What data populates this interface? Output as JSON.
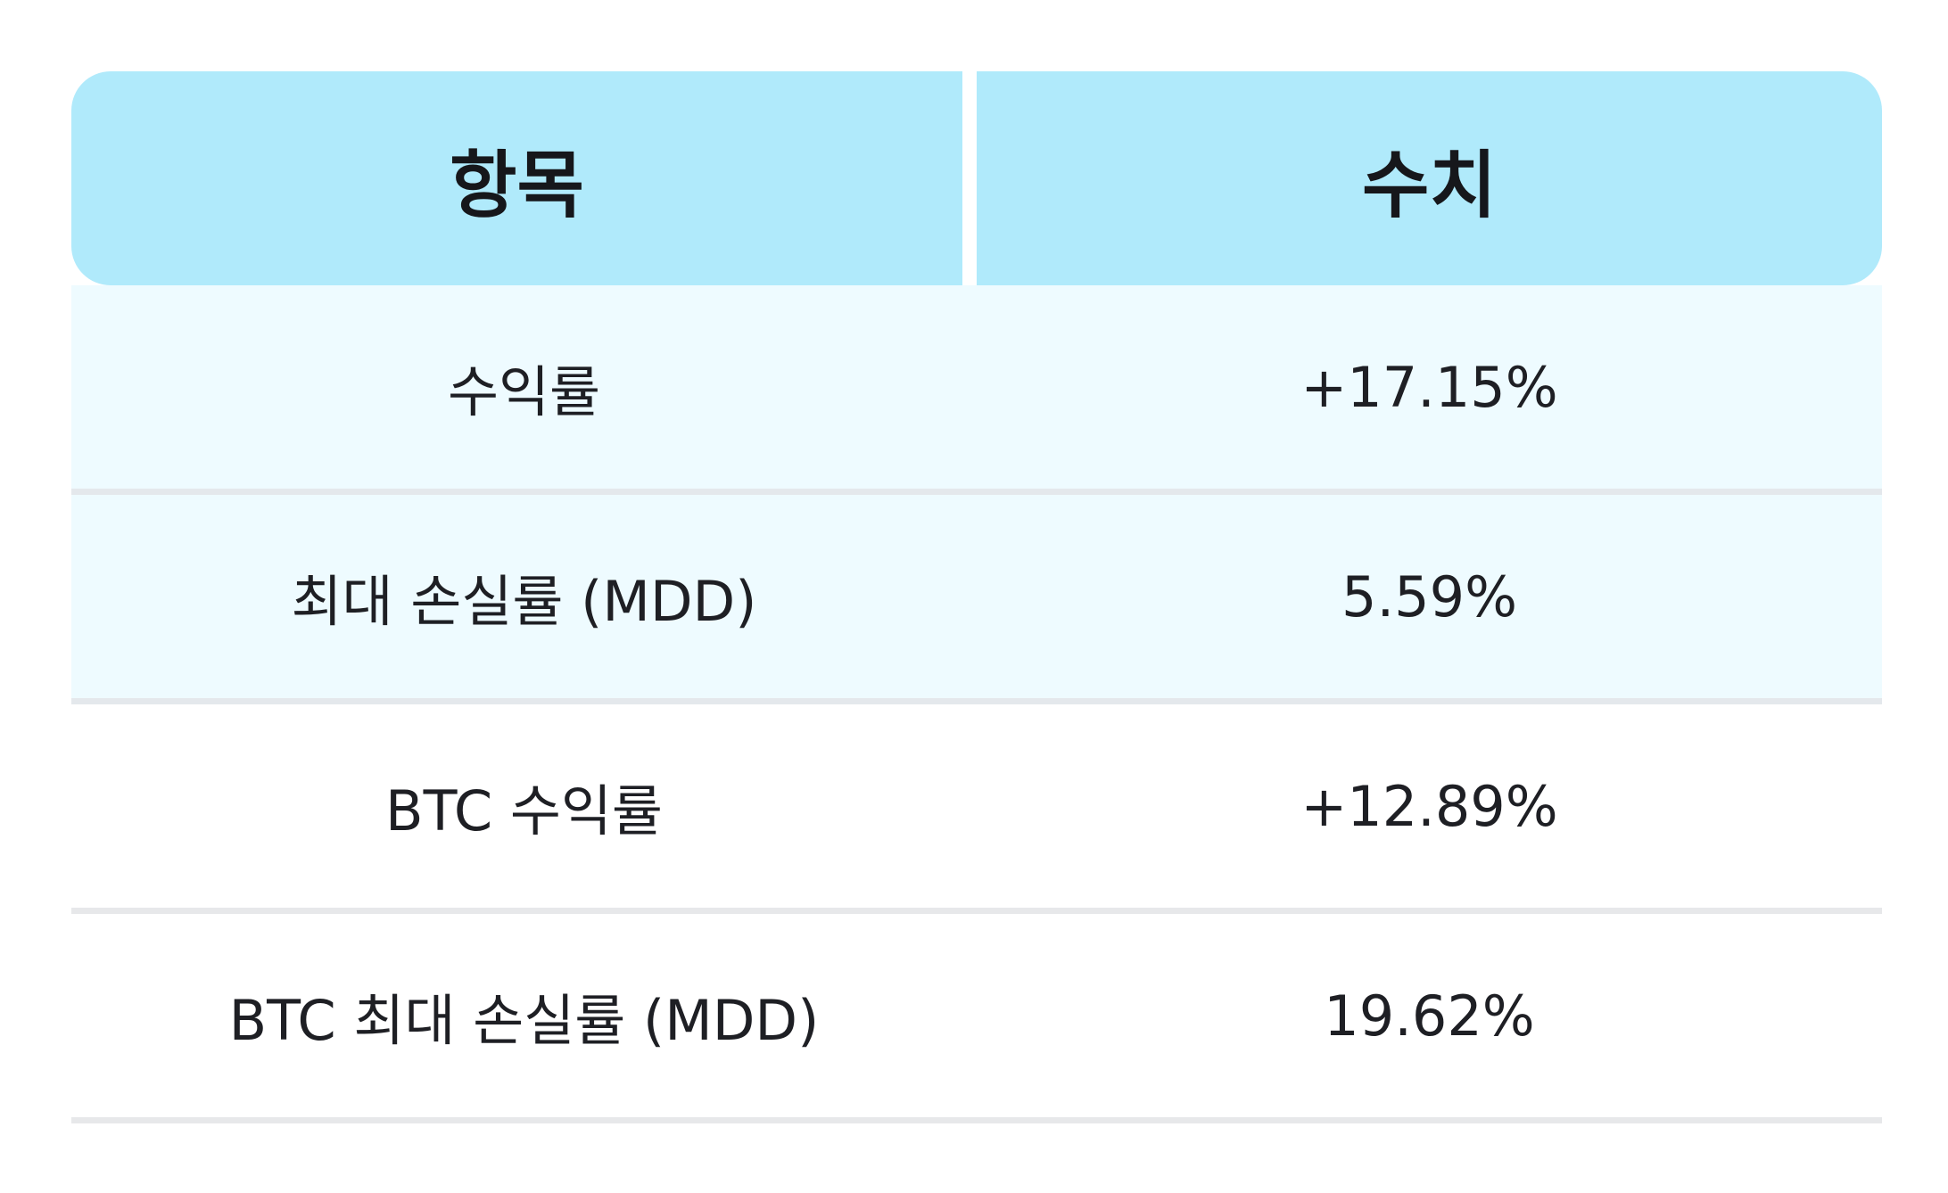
{
  "table": {
    "headers": {
      "item": "항목",
      "value": "수치"
    },
    "rows": [
      {
        "item": "수익률",
        "value": "+17.15%"
      },
      {
        "item": "최대 손실률 (MDD)",
        "value": "5.59%"
      },
      {
        "item": "BTC 수익률",
        "value": "+12.89%"
      },
      {
        "item": "BTC 최대 손실률 (MDD)",
        "value": "19.62%"
      }
    ]
  },
  "colors": {
    "header_bg": "#b0eafb",
    "highlight_row_bg": "#eefbff",
    "row_divider": "#e4e8ec",
    "text": "#1e1f24"
  }
}
